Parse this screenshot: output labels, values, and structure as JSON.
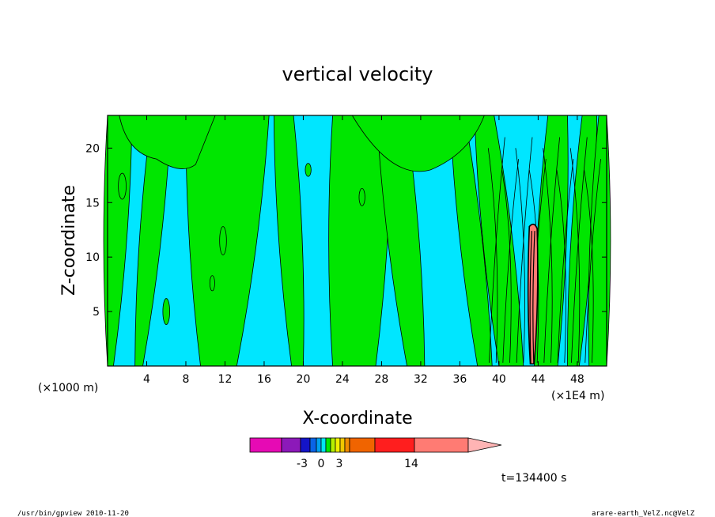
{
  "chart_data": {
    "type": "contour",
    "title": "vertical velocity",
    "xlabel": "X-coordinate",
    "ylabel": "Z-coordinate",
    "x_unit_left": "(×1000 m)",
    "x_unit_right": "(×1E4 m)",
    "xlim": [
      0,
      51
    ],
    "ylim": [
      0,
      23
    ],
    "x_ticks": [
      4,
      8,
      12,
      16,
      20,
      24,
      28,
      32,
      36,
      40,
      44,
      48
    ],
    "y_ticks": [
      5,
      10,
      15,
      20
    ],
    "time_label": "t=134400 s",
    "colorbar": {
      "colors": [
        "#e60ab4",
        "#8c19b9",
        "#1414c8",
        "#0a64e6",
        "#00a0f0",
        "#00e6f0",
        "#00e600",
        "#b4f000",
        "#f0f000",
        "#f0c800",
        "#f08c00",
        "#f06400",
        "#ff1e1e",
        "#ff7b73",
        "#ffb4b4"
      ],
      "tick_labels": [
        "-3",
        "0",
        "3",
        "14"
      ]
    },
    "regions": {
      "positive_color": "#00e600",
      "negative_color": "#00e6ff",
      "strong_color": "#ff7b73"
    }
  },
  "footer": {
    "left": "/usr/bin/gpview   2010-11-20",
    "right": "arare-earth_VelZ.nc@VelZ"
  }
}
